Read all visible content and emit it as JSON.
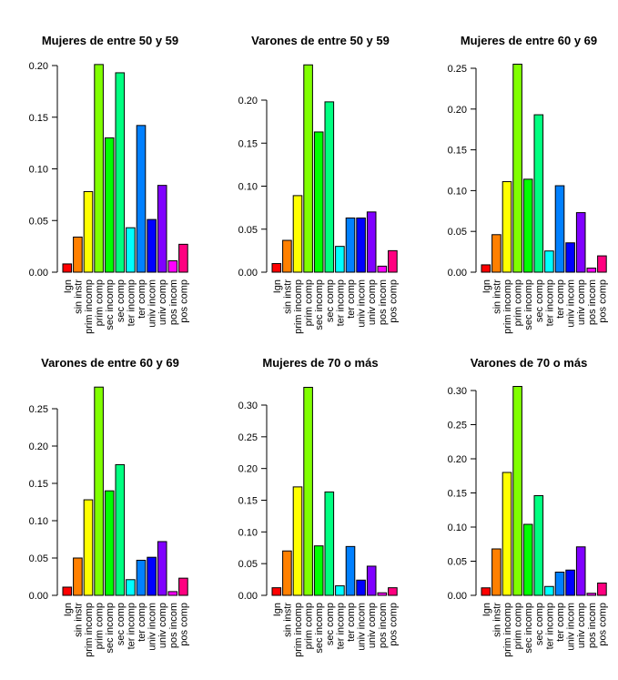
{
  "chart_data": [
    {
      "type": "bar",
      "title": "Mujeres de entre 50 y 59",
      "xlabel": "",
      "ylabel": "",
      "categories": [
        "Ign",
        "sin instr",
        "prim incomp",
        "prim comp",
        "sec incomp",
        "sec comp",
        "ter incomp",
        "ter comp",
        "univ incom",
        "univ comp",
        "pos incom",
        "pos comp"
      ],
      "values": [
        0.008,
        0.034,
        0.078,
        0.201,
        0.13,
        0.193,
        0.043,
        0.142,
        0.051,
        0.084,
        0.011,
        0.027
      ],
      "yticks": [
        "0.00",
        "0.05",
        "0.10",
        "0.15",
        "0.20"
      ],
      "ylim": [
        0,
        0.2
      ],
      "grid": false
    },
    {
      "type": "bar",
      "title": "Varones de entre 50 y 59",
      "xlabel": "",
      "ylabel": "",
      "categories": [
        "Ign",
        "sin instr",
        "prim incomp",
        "prim comp",
        "sec incomp",
        "sec comp",
        "ter incomp",
        "ter comp",
        "univ incom",
        "univ comp",
        "pos incom",
        "pos comp"
      ],
      "values": [
        0.01,
        0.037,
        0.089,
        0.241,
        0.163,
        0.198,
        0.03,
        0.063,
        0.063,
        0.07,
        0.007,
        0.025
      ],
      "yticks": [
        "0.00",
        "0.05",
        "0.10",
        "0.15",
        "0.20"
      ],
      "ylim": [
        0,
        0.2
      ],
      "grid": false
    },
    {
      "type": "bar",
      "title": "Mujeres de entre 60 y 69",
      "xlabel": "",
      "ylabel": "",
      "categories": [
        "Ign",
        "sin instr",
        "prim incomp",
        "prim comp",
        "sec incomp",
        "sec comp",
        "ter incomp",
        "ter comp",
        "univ incom",
        "univ comp",
        "pos incom",
        "pos comp"
      ],
      "values": [
        0.009,
        0.046,
        0.111,
        0.255,
        0.114,
        0.193,
        0.026,
        0.106,
        0.036,
        0.073,
        0.005,
        0.02
      ],
      "yticks": [
        "0.00",
        "0.05",
        "0.10",
        "0.15",
        "0.20",
        "0.25"
      ],
      "ylim": [
        0,
        0.25
      ],
      "grid": false
    },
    {
      "type": "bar",
      "title": "Varones de entre 60 y 69",
      "xlabel": "",
      "ylabel": "",
      "categories": [
        "Ign",
        "sin instr",
        "prim incomp",
        "prim comp",
        "sec incomp",
        "sec comp",
        "ter incomp",
        "ter comp",
        "univ incom",
        "univ comp",
        "pos incom",
        "pos comp"
      ],
      "values": [
        0.011,
        0.05,
        0.128,
        0.279,
        0.14,
        0.175,
        0.021,
        0.047,
        0.051,
        0.072,
        0.005,
        0.023
      ],
      "yticks": [
        "0.00",
        "0.05",
        "0.10",
        "0.15",
        "0.20",
        "0.25"
      ],
      "ylim": [
        0,
        0.25
      ],
      "grid": false
    },
    {
      "type": "bar",
      "title": "Mujeres de 70 o más",
      "xlabel": "",
      "ylabel": "",
      "categories": [
        "Ign",
        "sin instr",
        "prim incomp",
        "prim comp",
        "sec incomp",
        "sec comp",
        "ter incomp",
        "ter comp",
        "univ incom",
        "univ comp",
        "pos incom",
        "pos comp"
      ],
      "values": [
        0.012,
        0.07,
        0.171,
        0.328,
        0.078,
        0.163,
        0.015,
        0.077,
        0.024,
        0.046,
        0.004,
        0.012
      ],
      "yticks": [
        "0.00",
        "0.05",
        "0.10",
        "0.15",
        "0.20",
        "0.25",
        "0.30"
      ],
      "ylim": [
        0,
        0.3
      ],
      "grid": false
    },
    {
      "type": "bar",
      "title": "Varones de 70 o más",
      "xlabel": "",
      "ylabel": "",
      "categories": [
        "Ign",
        "sin instr",
        "prim incomp",
        "prim comp",
        "sec incomp",
        "sec comp",
        "ter incomp",
        "ter comp",
        "univ incom",
        "univ comp",
        "pos incom",
        "pos comp"
      ],
      "values": [
        0.011,
        0.068,
        0.18,
        0.306,
        0.104,
        0.146,
        0.013,
        0.034,
        0.037,
        0.071,
        0.003,
        0.018
      ],
      "yticks": [
        "0.00",
        "0.05",
        "0.10",
        "0.15",
        "0.20",
        "0.25",
        "0.30"
      ],
      "ylim": [
        0,
        0.3
      ],
      "grid": false
    }
  ],
  "bar_colors": [
    "#FF0000",
    "#FF8000",
    "#FFFF00",
    "#80FF00",
    "#00FF00",
    "#00FF80",
    "#00FFFF",
    "#0080FF",
    "#0000FF",
    "#8000FF",
    "#FF00FF",
    "#FF0080"
  ]
}
